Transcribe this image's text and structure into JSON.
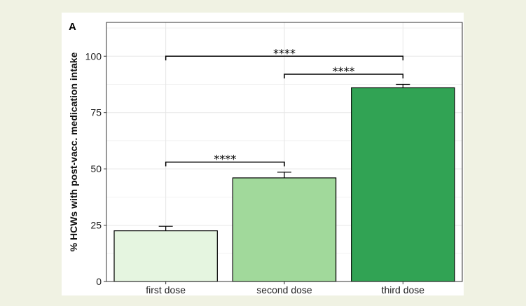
{
  "panel_label": "A",
  "chart_data": {
    "type": "bar",
    "title": "",
    "xlabel": "",
    "ylabel": "% HCWs with post-vacc. medication intake",
    "categories": [
      "first dose",
      "second dose",
      "third dose"
    ],
    "values": [
      22.5,
      46,
      86
    ],
    "error_upper": [
      24.5,
      48.5,
      87.5
    ],
    "bar_colors": [
      "#e5f5e0",
      "#a1d99b",
      "#31a354"
    ],
    "ylim": [
      0,
      115
    ],
    "yticks": [
      0,
      25,
      50,
      75,
      100
    ],
    "ytick_labels": [
      "0",
      "25",
      "50",
      "75",
      "100"
    ],
    "grid": true,
    "legend": "none",
    "significance": [
      {
        "from": 0,
        "to": 2,
        "label": "****",
        "y": 100
      },
      {
        "from": 1,
        "to": 2,
        "label": "****",
        "y": 92
      },
      {
        "from": 0,
        "to": 1,
        "label": "****",
        "y": 53
      }
    ]
  }
}
